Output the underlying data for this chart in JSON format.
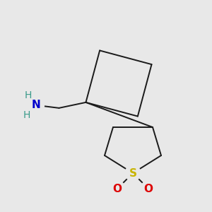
{
  "background_color": "#e8e8e8",
  "bond_color": "#1a1a1a",
  "S_color": "#c8b400",
  "O_color": "#dd0000",
  "N_color": "#0000cc",
  "H_color": "#3a9a8a",
  "S_label": "S",
  "N_label": "N",
  "H_label": "H",
  "O_label": "O",
  "font_size_atom": 11,
  "font_size_H": 10
}
